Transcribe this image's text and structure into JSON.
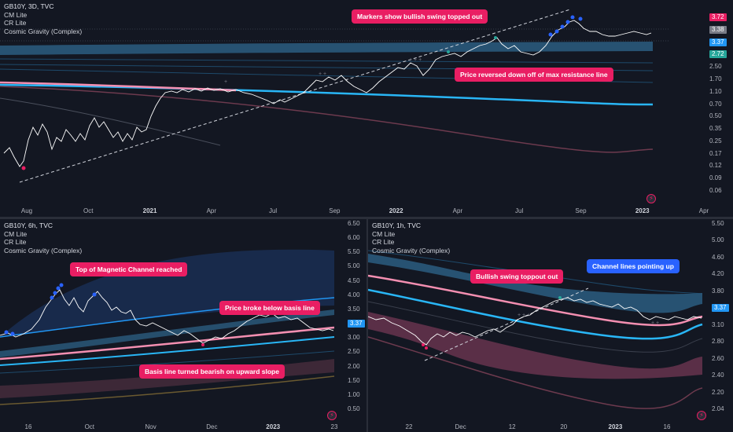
{
  "colors": {
    "background": "#131722",
    "price": "#ffffff",
    "basis": "#f48fb1",
    "channel": "#2196f3",
    "callout_pink": "#e91e63",
    "callout_blue": "#2962ff",
    "marker": "#2962ff"
  },
  "top": {
    "legend": {
      "symbol": "GB10Y, 3D, TVC",
      "ind1": "CM Lite",
      "ind2": "CR Lite",
      "ind3": "Cosmic Gravity (Complex)"
    },
    "y_ticks": [
      "3.72",
      "3.38",
      "3.37",
      "2.72",
      "2.50",
      "1.70",
      "1.10",
      "0.70",
      "0.50",
      "0.35",
      "0.25",
      "0.17",
      "0.12",
      "0.09",
      "0.06"
    ],
    "x_ticks": [
      "Aug",
      "Oct",
      "2021",
      "Apr",
      "Jul",
      "Sep",
      "2022",
      "Apr",
      "Jul",
      "Sep",
      "2023",
      "Apr"
    ],
    "callout1": "Markers show bullish swing topped out",
    "callout2": "Price reversed down off of max resistance line",
    "icon": "tradingview-icon"
  },
  "bottom_left": {
    "legend": {
      "symbol": "GB10Y, 6h, TVC",
      "ind1": "CM Lite",
      "ind2": "CR Lite",
      "ind3": "Cosmic Gravity (Complex)"
    },
    "y_ticks": [
      "6.50",
      "6.00",
      "5.50",
      "5.00",
      "4.50",
      "4.00",
      "3.50",
      "3.37",
      "3.00",
      "2.50",
      "2.00",
      "1.50",
      "1.00",
      "0.50"
    ],
    "x_ticks": [
      "16",
      "Oct",
      "Nov",
      "Dec",
      "2023",
      "23"
    ],
    "callout1": "Top of Magnetic Channel reached",
    "callout2": "Price broke below basis line",
    "callout3": "Basis line turned bearish on upward slope",
    "icon": "tradingview-icon"
  },
  "bottom_right": {
    "legend": {
      "symbol": "GB10Y, 1h, TVC",
      "ind1": "CM Lite",
      "ind2": "CR Lite",
      "ind3": "Cosmic Gravity (Complex)"
    },
    "y_ticks": [
      "5.50",
      "5.00",
      "4.60",
      "4.20",
      "3.80",
      "3.37",
      "3.10",
      "2.80",
      "2.60",
      "2.40",
      "2.20",
      "2.04"
    ],
    "x_ticks": [
      "22",
      "Dec",
      "12",
      "20",
      "2023",
      "16"
    ],
    "callout1": "Bullish swing toppout out",
    "callout2": "Channel lines pointing up",
    "icon": "tradingview-icon"
  }
}
